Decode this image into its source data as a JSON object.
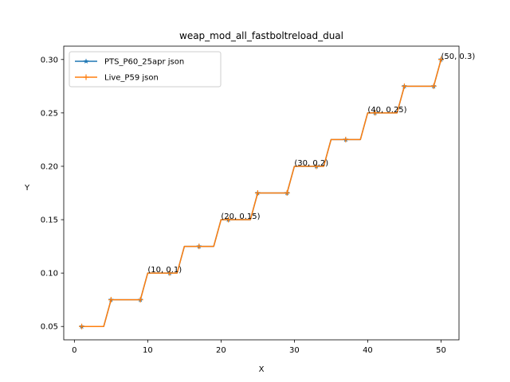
{
  "chart_data": {
    "type": "line",
    "title": "weap_mod_all_fastboltreload_dual",
    "xlabel": "X",
    "ylabel": "Y",
    "xlim": [
      -1.45,
      52.45
    ],
    "ylim": [
      0.0375,
      0.3125
    ],
    "xticks": [
      0,
      10,
      20,
      30,
      40,
      50
    ],
    "yticks": [
      0.05,
      0.1,
      0.15,
      0.2,
      0.25,
      0.3
    ],
    "ytick_labels": [
      "0.05",
      "0.10",
      "0.15",
      "0.20",
      "0.25",
      "0.30"
    ],
    "legend_position": "upper-left",
    "x": [
      1,
      2,
      3,
      4,
      5,
      6,
      7,
      8,
      9,
      10,
      11,
      12,
      13,
      14,
      15,
      16,
      17,
      18,
      19,
      20,
      21,
      22,
      23,
      24,
      25,
      26,
      27,
      28,
      29,
      30,
      31,
      32,
      33,
      34,
      35,
      36,
      37,
      38,
      39,
      40,
      41,
      42,
      43,
      44,
      45,
      46,
      47,
      48,
      49,
      50
    ],
    "series": [
      {
        "name": "PTS_P60_25apr json",
        "color": "#1f77b4",
        "marker": "star",
        "markevery": 4,
        "values": [
          0.05,
          0.05,
          0.05,
          0.05,
          0.075,
          0.075,
          0.075,
          0.075,
          0.075,
          0.1,
          0.1,
          0.1,
          0.1,
          0.1,
          0.125,
          0.125,
          0.125,
          0.125,
          0.125,
          0.15,
          0.15,
          0.15,
          0.15,
          0.15,
          0.175,
          0.175,
          0.175,
          0.175,
          0.175,
          0.2,
          0.2,
          0.2,
          0.2,
          0.2,
          0.225,
          0.225,
          0.225,
          0.225,
          0.225,
          0.25,
          0.25,
          0.25,
          0.25,
          0.25,
          0.275,
          0.275,
          0.275,
          0.275,
          0.275,
          0.3
        ]
      },
      {
        "name": "Live_P59 json",
        "color": "#ff7f0e",
        "marker": "plus",
        "markevery": 4,
        "values": [
          0.05,
          0.05,
          0.05,
          0.05,
          0.075,
          0.075,
          0.075,
          0.075,
          0.075,
          0.1,
          0.1,
          0.1,
          0.1,
          0.1,
          0.125,
          0.125,
          0.125,
          0.125,
          0.125,
          0.15,
          0.15,
          0.15,
          0.15,
          0.15,
          0.175,
          0.175,
          0.175,
          0.175,
          0.175,
          0.2,
          0.2,
          0.2,
          0.2,
          0.2,
          0.225,
          0.225,
          0.225,
          0.225,
          0.225,
          0.25,
          0.25,
          0.25,
          0.25,
          0.25,
          0.275,
          0.275,
          0.275,
          0.275,
          0.275,
          0.3
        ]
      }
    ],
    "annotations": [
      {
        "x": 10,
        "y": 0.1,
        "text": "(10, 0.1)"
      },
      {
        "x": 20,
        "y": 0.15,
        "text": "(20, 0.15)"
      },
      {
        "x": 30,
        "y": 0.2,
        "text": "(30, 0.2)"
      },
      {
        "x": 40,
        "y": 0.25,
        "text": "(40, 0.25)"
      },
      {
        "x": 50,
        "y": 0.3,
        "text": "(50, 0.3)"
      }
    ]
  }
}
